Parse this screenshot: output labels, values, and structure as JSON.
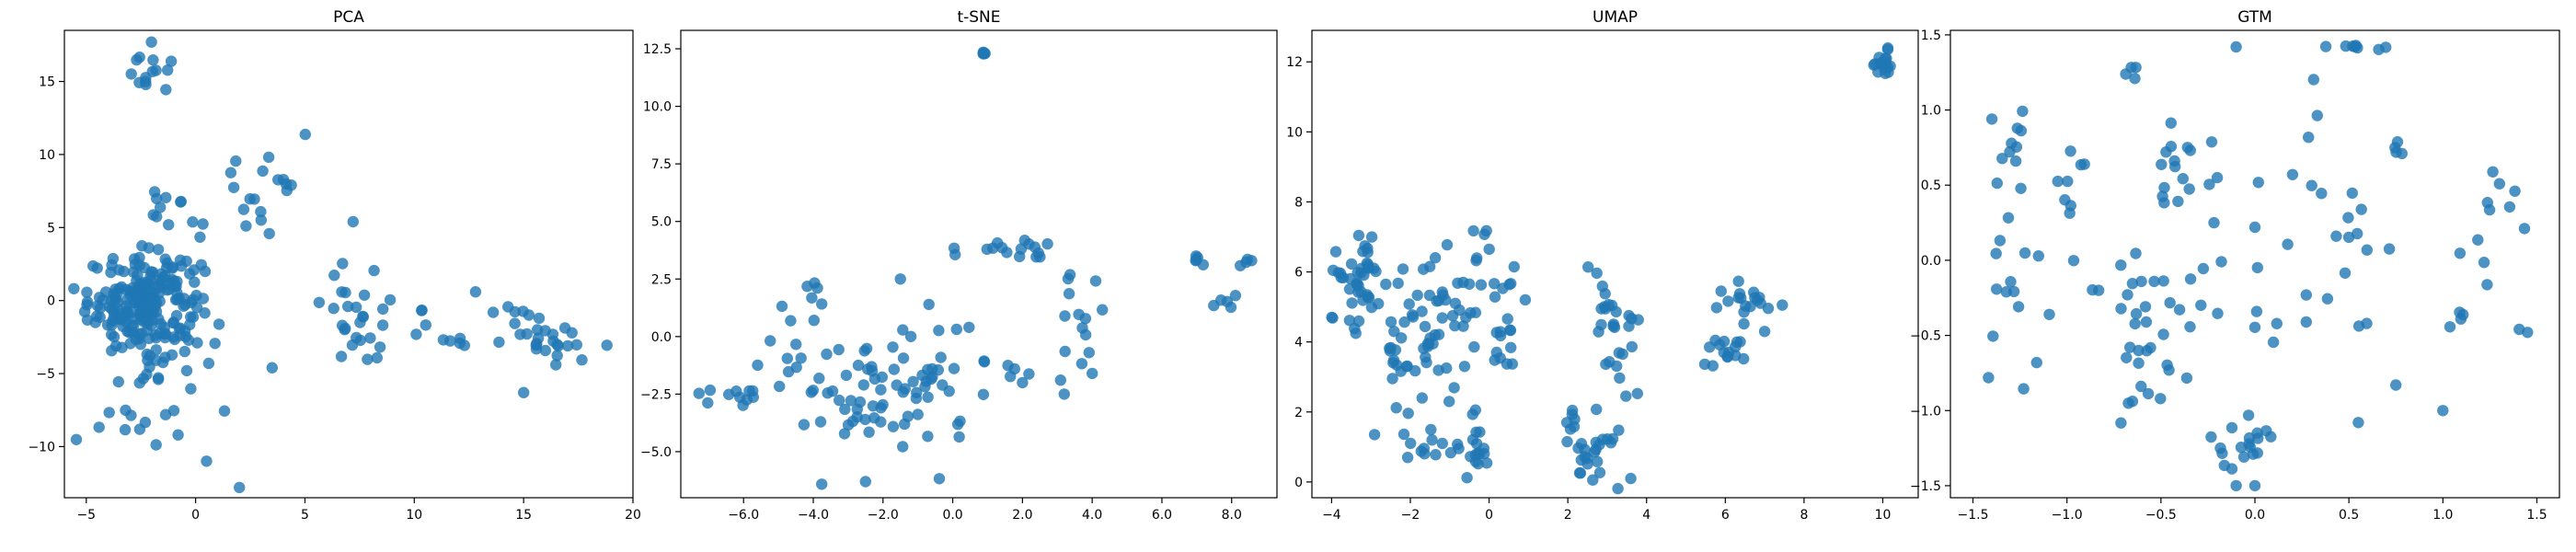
{
  "figure": {
    "point_color": "#1f77b4"
  },
  "chart_data": [
    {
      "type": "scatter",
      "title": "PCA",
      "xlabel": "",
      "ylabel": "",
      "xlim": [
        -6,
        20
      ],
      "ylim": [
        -13.5,
        18.5
      ],
      "xticks": [
        -5,
        0,
        5,
        10,
        15,
        20
      ],
      "yticks": [
        -10,
        -5,
        0,
        5,
        10,
        15
      ],
      "clusters": [
        {
          "x": -2.3,
          "y": -0.2,
          "sx": 1.3,
          "sy": 1.7,
          "n": 230
        },
        {
          "x": -2.0,
          "y": 15.6,
          "sx": 0.55,
          "sy": 1.0,
          "n": 15
        },
        {
          "x": -1.3,
          "y": 5.8,
          "sx": 0.8,
          "sy": 0.9,
          "n": 12
        },
        {
          "x": 3.3,
          "y": 7.5,
          "sx": 1.0,
          "sy": 1.8,
          "n": 18
        },
        {
          "x": 8.0,
          "y": -0.8,
          "sx": 1.1,
          "sy": 2.0,
          "n": 30
        },
        {
          "x": 11.5,
          "y": -2.3,
          "sx": 0.6,
          "sy": 0.6,
          "n": 6
        },
        {
          "x": 16.0,
          "y": -2.2,
          "sx": 1.4,
          "sy": 0.9,
          "n": 30
        },
        {
          "x": -2.0,
          "y": -7.5,
          "sx": 1.2,
          "sy": 1.6,
          "n": 18
        }
      ],
      "points": [
        [
          2,
          -12.8
        ],
        [
          0.5,
          -11
        ],
        [
          -0.8,
          -9.2
        ],
        [
          15,
          -6.3
        ],
        [
          12.8,
          0.6
        ],
        [
          3.5,
          -4.6
        ],
        [
          7.2,
          5.4
        ],
        [
          0.6,
          -4.3
        ]
      ]
    },
    {
      "type": "scatter",
      "title": "t-SNE",
      "xlabel": "",
      "ylabel": "",
      "xlim": [
        -7.8,
        9.3
      ],
      "ylim": [
        -7.0,
        13.3
      ],
      "xticks": [
        -6,
        -4,
        -2,
        0,
        2,
        4,
        6,
        8
      ],
      "yticks": [
        -5.0,
        -2.5,
        0.0,
        2.5,
        5.0,
        7.5,
        10.0,
        12.5
      ],
      "tick_decimals": 1,
      "clusters": [
        {
          "x": -6.5,
          "y": -2.5,
          "sx": 0.6,
          "sy": 0.3,
          "n": 12
        },
        {
          "x": -4.2,
          "y": -0.5,
          "sx": 0.7,
          "sy": 1.2,
          "n": 14
        },
        {
          "x": -2.5,
          "y": -2.5,
          "sx": 0.7,
          "sy": 1.3,
          "n": 40
        },
        {
          "x": -0.7,
          "y": -2.0,
          "sx": 0.9,
          "sy": 1.6,
          "n": 32
        },
        {
          "x": 1.2,
          "y": 3.9,
          "sx": 0.35,
          "sy": 0.15,
          "n": 8
        },
        {
          "x": 2.3,
          "y": 3.8,
          "sx": 0.35,
          "sy": 0.5,
          "n": 8
        },
        {
          "x": 3.5,
          "y": 0.5,
          "sx": 0.5,
          "sy": 1.5,
          "n": 14
        },
        {
          "x": -4.0,
          "y": 2.1,
          "sx": 0.15,
          "sy": 0.2,
          "n": 4
        },
        {
          "x": 7.1,
          "y": 3.2,
          "sx": 0.1,
          "sy": 0.2,
          "n": 5
        },
        {
          "x": 8.4,
          "y": 3.2,
          "sx": 0.1,
          "sy": 0.1,
          "n": 4
        },
        {
          "x": 7.8,
          "y": 1.5,
          "sx": 0.2,
          "sy": 0.2,
          "n": 5
        },
        {
          "x": 0.9,
          "y": 12.3,
          "sx": 0.03,
          "sy": 0.04,
          "n": 5
        },
        {
          "x": 1.5,
          "y": -1.2,
          "sx": 0.4,
          "sy": 0.5,
          "n": 6
        }
      ],
      "points": [
        [
          -2.5,
          -6.3
        ],
        [
          -1.5,
          2.5
        ],
        [
          -1.2,
          0.0
        ],
        [
          2.0,
          -2.0
        ],
        [
          3.2,
          -2.5
        ],
        [
          4.0,
          -1.6
        ]
      ]
    },
    {
      "type": "scatter",
      "title": "UMAP",
      "xlabel": "",
      "ylabel": "",
      "xlim": [
        -4.5,
        10.9
      ],
      "ylim": [
        -0.45,
        12.9
      ],
      "xticks": [
        -4,
        -2,
        0,
        2,
        4,
        6,
        8,
        10
      ],
      "yticks": [
        0,
        2,
        4,
        6,
        8,
        10,
        12
      ],
      "clusters": [
        {
          "x": -3.2,
          "y": 6.2,
          "sx": 0.5,
          "sy": 0.6,
          "n": 30
        },
        {
          "x": -3.3,
          "y": 4.9,
          "sx": 0.35,
          "sy": 0.35,
          "n": 10
        },
        {
          "x": -1.8,
          "y": 4.0,
          "sx": 0.9,
          "sy": 1.2,
          "n": 60
        },
        {
          "x": -0.4,
          "y": 5.8,
          "sx": 0.6,
          "sy": 0.8,
          "n": 25
        },
        {
          "x": -1.2,
          "y": 0.9,
          "sx": 0.45,
          "sy": 0.35,
          "n": 15
        },
        {
          "x": -0.3,
          "y": 1.0,
          "sx": 0.25,
          "sy": 0.4,
          "n": 14
        },
        {
          "x": 0.2,
          "y": 4.2,
          "sx": 0.4,
          "sy": 0.5,
          "n": 10
        },
        {
          "x": 2.6,
          "y": 0.9,
          "sx": 0.35,
          "sy": 0.6,
          "n": 30
        },
        {
          "x": 3.1,
          "y": 4.2,
          "sx": 0.4,
          "sy": 1.0,
          "n": 28
        },
        {
          "x": 6.0,
          "y": 3.6,
          "sx": 0.3,
          "sy": 0.3,
          "n": 15
        },
        {
          "x": 6.7,
          "y": 5.2,
          "sx": 0.35,
          "sy": 0.3,
          "n": 18
        },
        {
          "x": 10.0,
          "y": 12.0,
          "sx": 0.15,
          "sy": 0.2,
          "n": 20
        }
      ],
      "points": [
        [
          -1.7,
          2.4
        ],
        [
          7.0,
          4.3
        ],
        [
          3.6,
          0.1
        ]
      ]
    },
    {
      "type": "scatter",
      "title": "GTM",
      "xlabel": "",
      "ylabel": "",
      "xlim": [
        -1.62,
        1.62
      ],
      "ylim": [
        -1.58,
        1.53
      ],
      "xticks": [
        -1.5,
        -1.0,
        -0.5,
        0.0,
        0.5,
        1.0,
        1.5
      ],
      "yticks": [
        -1.5,
        -1.0,
        -0.5,
        0.0,
        0.5,
        1.0,
        1.5
      ],
      "tick_decimals": 1,
      "clusters": [
        {
          "x": -1.3,
          "y": 0.65,
          "sx": 0.06,
          "sy": 0.2,
          "n": 12
        },
        {
          "x": -1.0,
          "y": 0.6,
          "sx": 0.1,
          "sy": 0.2,
          "n": 8
        },
        {
          "x": -1.35,
          "y": -0.35,
          "sx": 0.1,
          "sy": 0.3,
          "n": 14
        },
        {
          "x": -0.65,
          "y": 1.25,
          "sx": 0.03,
          "sy": 0.04,
          "n": 4
        },
        {
          "x": -0.4,
          "y": 0.5,
          "sx": 0.15,
          "sy": 0.2,
          "n": 18
        },
        {
          "x": -0.6,
          "y": -0.9,
          "sx": 0.1,
          "sy": 0.2,
          "n": 14
        },
        {
          "x": -0.5,
          "y": -0.2,
          "sx": 0.2,
          "sy": 0.2,
          "n": 26
        },
        {
          "x": -0.05,
          "y": -1.2,
          "sx": 0.1,
          "sy": 0.1,
          "n": 18
        },
        {
          "x": 0.55,
          "y": 1.42,
          "sx": 0.1,
          "sy": 0.02,
          "n": 8
        },
        {
          "x": 0.3,
          "y": 1.0,
          "sx": 0.02,
          "sy": 0.15,
          "n": 4
        },
        {
          "x": 0.55,
          "y": 0.2,
          "sx": 0.1,
          "sy": 0.2,
          "n": 10
        },
        {
          "x": 0.3,
          "y": -0.4,
          "sx": 0.15,
          "sy": 0.25,
          "n": 10
        },
        {
          "x": 1.3,
          "y": 0.2,
          "sx": 0.15,
          "sy": 0.3,
          "n": 14
        },
        {
          "x": 1.1,
          "y": -0.4,
          "sx": 0.04,
          "sy": 0.03,
          "n": 4
        },
        {
          "x": 0.75,
          "y": 0.75,
          "sx": 0.03,
          "sy": 0.03,
          "n": 4
        }
      ],
      "points": [
        [
          -0.1,
          1.42
        ],
        [
          -0.1,
          -1.5
        ],
        [
          0.0,
          -1.5
        ],
        [
          1.45,
          -0.48
        ],
        [
          1.0,
          -1.0
        ],
        [
          0.55,
          -1.08
        ],
        [
          0.75,
          -0.83
        ],
        [
          0.0,
          0.22
        ],
        [
          0.2,
          0.57
        ],
        [
          -0.2,
          0.55
        ]
      ]
    }
  ]
}
